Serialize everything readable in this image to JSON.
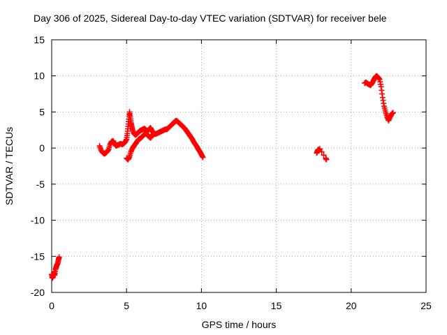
{
  "chart_data": {
    "type": "scatter",
    "title": "Day 306 of 2025, Sidereal Day-to-day VTEC variation (SDTVAR) for receiver bele",
    "xlabel": "GPS time / hours",
    "ylabel": "SDTVAR / TECUs",
    "xlim": [
      0,
      25
    ],
    "ylim": [
      -20,
      15
    ],
    "xticks": [
      "0",
      "5",
      "10",
      "15",
      "20",
      "25"
    ],
    "yticks": [
      "-20",
      "-15",
      "-10",
      "-5",
      "0",
      "5",
      "10",
      "15"
    ],
    "grid": true,
    "marker": "+",
    "color": "#ff0000",
    "series": [
      {
        "name": "bele",
        "segments": [
          [
            [
              0.0,
              -17.5
            ],
            [
              0.05,
              -18.0
            ],
            [
              0.1,
              -17.8
            ],
            [
              0.15,
              -17.2
            ],
            [
              0.2,
              -17.6
            ],
            [
              0.25,
              -16.8
            ],
            [
              0.3,
              -16.5
            ],
            [
              0.35,
              -16.2
            ],
            [
              0.4,
              -16.0
            ],
            [
              0.45,
              -15.5
            ],
            [
              0.5,
              -15.1
            ]
          ],
          [
            [
              3.2,
              0.3
            ],
            [
              3.3,
              -0.3
            ],
            [
              3.4,
              -0.6
            ],
            [
              3.5,
              -0.8
            ],
            [
              3.6,
              -0.7
            ],
            [
              3.7,
              -0.5
            ],
            [
              3.8,
              -0.2
            ],
            [
              3.9,
              0.5
            ],
            [
              4.0,
              0.9
            ],
            [
              4.1,
              1.0
            ],
            [
              4.2,
              0.6
            ],
            [
              4.3,
              0.3
            ],
            [
              4.4,
              0.4
            ],
            [
              4.5,
              0.5
            ],
            [
              4.6,
              0.6
            ],
            [
              4.7,
              0.5
            ],
            [
              4.8,
              0.6
            ],
            [
              4.9,
              0.8
            ],
            [
              5.0,
              1.2
            ],
            [
              5.05,
              2.0
            ],
            [
              5.1,
              3.0
            ],
            [
              5.15,
              4.0
            ],
            [
              5.2,
              5.0
            ],
            [
              5.25,
              4.3
            ],
            [
              5.3,
              3.5
            ],
            [
              5.35,
              3.0
            ],
            [
              5.4,
              2.5
            ],
            [
              5.5,
              2.0
            ],
            [
              5.6,
              1.8
            ],
            [
              5.7,
              2.0
            ],
            [
              5.8,
              2.2
            ],
            [
              5.9,
              2.4
            ],
            [
              6.0,
              2.5
            ],
            [
              6.1,
              2.6
            ],
            [
              6.2,
              2.7
            ],
            [
              6.3,
              2.5
            ],
            [
              6.4,
              2.3
            ],
            [
              6.5,
              2.6
            ],
            [
              6.6,
              2.8
            ],
            [
              6.7,
              2.4
            ],
            [
              6.8,
              2.1
            ],
            [
              6.9,
              1.9
            ],
            [
              7.0,
              2.0
            ],
            [
              7.1,
              2.1
            ],
            [
              7.2,
              2.2
            ],
            [
              7.3,
              2.3
            ],
            [
              7.4,
              2.4
            ],
            [
              7.5,
              2.5
            ],
            [
              7.6,
              2.6
            ],
            [
              7.7,
              2.6
            ],
            [
              7.8,
              2.8
            ],
            [
              7.9,
              3.0
            ],
            [
              8.0,
              3.2
            ],
            [
              8.1,
              3.4
            ],
            [
              8.2,
              3.6
            ],
            [
              8.3,
              3.8
            ],
            [
              8.4,
              3.7
            ],
            [
              8.5,
              3.5
            ],
            [
              8.6,
              3.3
            ],
            [
              8.7,
              3.1
            ],
            [
              8.8,
              2.9
            ],
            [
              8.9,
              2.7
            ],
            [
              9.0,
              2.4
            ],
            [
              9.1,
              2.1
            ],
            [
              9.2,
              1.8
            ],
            [
              9.3,
              1.5
            ],
            [
              9.4,
              1.2
            ],
            [
              9.5,
              0.8
            ],
            [
              9.6,
              0.5
            ],
            [
              9.7,
              0.2
            ],
            [
              9.8,
              -0.2
            ],
            [
              9.9,
              -0.5
            ],
            [
              10.0,
              -0.9
            ],
            [
              10.1,
              -1.3
            ]
          ],
          [
            [
              5.0,
              -1.4
            ],
            [
              5.1,
              -1.6
            ],
            [
              5.2,
              -1.2
            ],
            [
              5.3,
              -0.5
            ],
            [
              5.4,
              0.0
            ],
            [
              5.5,
              0.3
            ],
            [
              5.6,
              0.6
            ],
            [
              5.7,
              0.9
            ],
            [
              5.8,
              1.2
            ],
            [
              5.9,
              1.3
            ],
            [
              6.0,
              1.5
            ],
            [
              6.1,
              1.7
            ],
            [
              6.2,
              1.9
            ],
            [
              6.3,
              2.0
            ],
            [
              6.4,
              1.8
            ],
            [
              6.5,
              1.6
            ],
            [
              6.6,
              1.4
            ],
            [
              6.7,
              1.7
            ],
            [
              6.8,
              2.0
            ]
          ],
          [
            [
              17.7,
              -0.7
            ],
            [
              17.75,
              -0.4
            ],
            [
              17.8,
              -0.2
            ],
            [
              17.85,
              -0.4
            ],
            [
              17.9,
              -0.1
            ],
            [
              18.3,
              -1.4
            ],
            [
              18.35,
              -1.6
            ]
          ],
          [
            [
              20.9,
              9.0
            ],
            [
              21.0,
              9.1
            ],
            [
              21.1,
              8.9
            ],
            [
              21.2,
              8.8
            ],
            [
              21.3,
              8.7
            ],
            [
              21.4,
              9.0
            ],
            [
              21.5,
              9.4
            ],
            [
              21.6,
              9.8
            ],
            [
              21.7,
              10.0
            ],
            [
              21.8,
              9.8
            ],
            [
              21.9,
              9.5
            ],
            [
              22.0,
              8.5
            ],
            [
              22.1,
              7.0
            ],
            [
              22.2,
              5.8
            ],
            [
              22.3,
              5.0
            ],
            [
              22.4,
              4.3
            ],
            [
              22.5,
              3.8
            ],
            [
              22.6,
              4.3
            ],
            [
              22.7,
              4.7
            ],
            [
              22.8,
              4.9
            ]
          ]
        ]
      }
    ]
  }
}
